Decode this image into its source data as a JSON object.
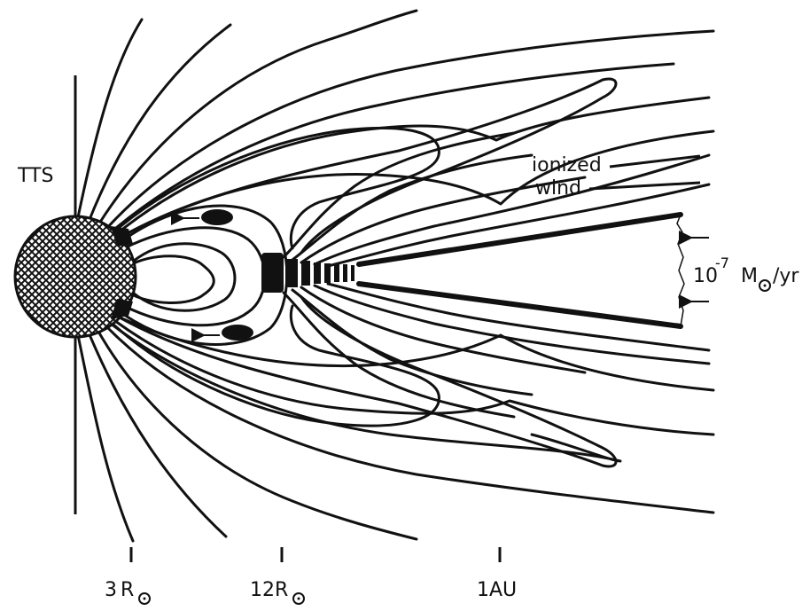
{
  "diagram": {
    "star_label": "TTS",
    "wind_label_line1": "ionized",
    "wind_label_line2": "wind",
    "mass_loss_base": "10",
    "mass_loss_exponent": "-7",
    "mass_loss_unit_m": "M",
    "mass_loss_unit_rest": "/yr",
    "scale_markers": [
      {
        "value": "3",
        "unit": "R",
        "sun_symbol": true
      },
      {
        "value": "12",
        "unit": "R",
        "sun_symbol": true
      },
      {
        "value": "1",
        "unit": "AU",
        "sun_symbol": false
      }
    ],
    "colors": {
      "ink": "#111111",
      "background": "#ffffff"
    }
  }
}
